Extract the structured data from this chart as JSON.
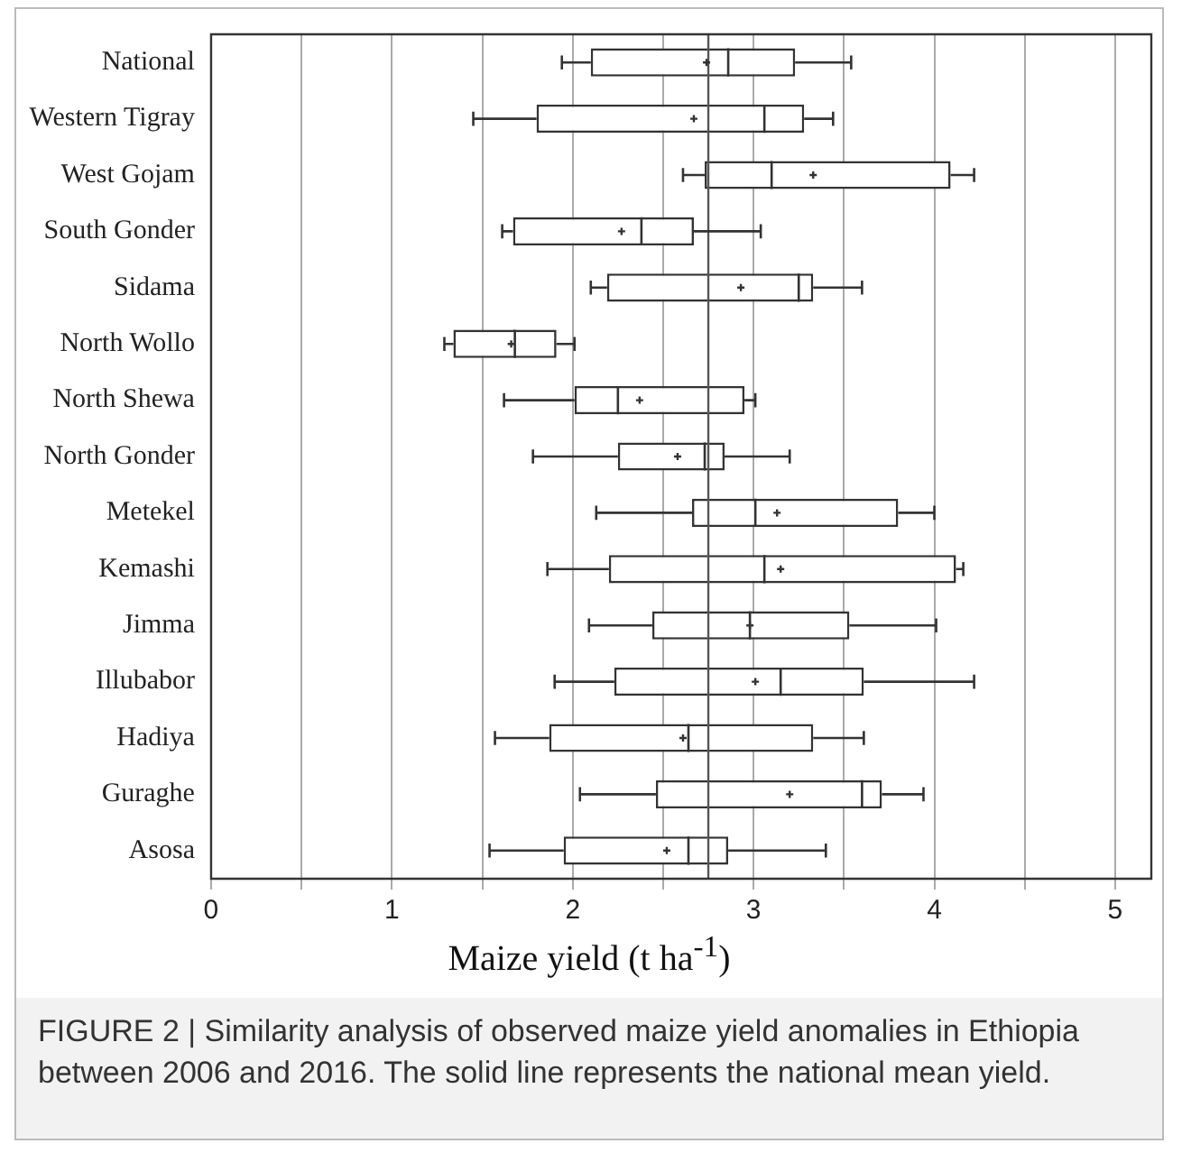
{
  "chart_data": {
    "type": "box",
    "orientation": "horizontal",
    "xlabel": "Maize yield (t ha$^{-1}$)",
    "color": "#333333",
    "categories": [
      "National",
      "Western Tigray",
      "West Gojam",
      "South Gonder",
      "Sidama",
      "North Wollo",
      "North Shewa",
      "North Gonder",
      "Metekel",
      "Kemashi",
      "Jimma",
      "Illubabor",
      "Hadiya",
      "Guraghe",
      "Asosa"
    ],
    "boxes": [
      {
        "low": 1.94,
        "q1": 2.1,
        "median": 2.86,
        "q3": 3.23,
        "high": 3.54,
        "mean": 2.74
      },
      {
        "low": 1.45,
        "q1": 1.8,
        "median": 3.06,
        "q3": 3.28,
        "high": 3.44,
        "mean": 2.67
      },
      {
        "low": 2.61,
        "q1": 2.73,
        "median": 3.1,
        "q3": 4.09,
        "high": 4.22,
        "mean": 3.33
      },
      {
        "low": 1.61,
        "q1": 1.67,
        "median": 2.38,
        "q3": 2.67,
        "high": 3.04,
        "mean": 2.27
      },
      {
        "low": 2.1,
        "q1": 2.19,
        "median": 3.25,
        "q3": 3.33,
        "high": 3.6,
        "mean": 2.93
      },
      {
        "low": 1.29,
        "q1": 1.34,
        "median": 1.68,
        "q3": 1.91,
        "high": 2.01,
        "mean": 1.66
      },
      {
        "low": 1.62,
        "q1": 2.01,
        "median": 2.25,
        "q3": 2.95,
        "high": 3.01,
        "mean": 2.37
      },
      {
        "low": 1.78,
        "q1": 2.25,
        "median": 2.73,
        "q3": 2.84,
        "high": 3.2,
        "mean": 2.58
      },
      {
        "low": 2.13,
        "q1": 2.66,
        "median": 3.01,
        "q3": 3.8,
        "high": 4.0,
        "mean": 3.13
      },
      {
        "low": 1.86,
        "q1": 2.2,
        "median": 3.06,
        "q3": 4.12,
        "high": 4.16,
        "mean": 3.15
      },
      {
        "low": 2.09,
        "q1": 2.44,
        "median": 2.98,
        "q3": 3.53,
        "high": 4.01,
        "mean": 2.98
      },
      {
        "low": 1.9,
        "q1": 2.23,
        "median": 3.15,
        "q3": 3.61,
        "high": 4.22,
        "mean": 3.01
      },
      {
        "low": 1.57,
        "q1": 1.87,
        "median": 2.64,
        "q3": 3.33,
        "high": 3.61,
        "mean": 2.61
      },
      {
        "low": 2.04,
        "q1": 2.46,
        "median": 3.6,
        "q3": 3.71,
        "high": 3.94,
        "mean": 3.2
      },
      {
        "low": 1.54,
        "q1": 1.95,
        "median": 2.64,
        "q3": 2.86,
        "high": 3.4,
        "mean": 2.52
      }
    ],
    "xlim": [
      0,
      5.2
    ],
    "xticks": [
      0,
      {
        "value": 0.5,
        "label": null
      },
      1,
      {
        "value": 1.5,
        "label": null
      },
      2,
      {
        "value": 2.5,
        "label": null
      },
      3,
      {
        "value": 3.5,
        "label": null
      },
      4,
      {
        "value": 4.5,
        "label": null
      },
      5
    ],
    "grid": "x",
    "ref_lines": [
      {
        "axis": "x",
        "value": 2.75,
        "color": "#555555",
        "line_style": "solid"
      }
    ],
    "annotations": [
      "FIGURE 2 | Similarity analysis of observed maize yield anomalies in Ethiopia between 2006 and 2016. The solid line represents the national mean yield."
    ]
  }
}
